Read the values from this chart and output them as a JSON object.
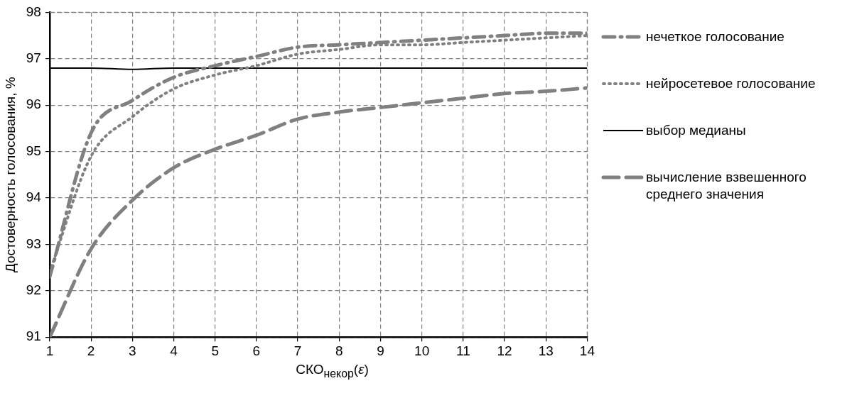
{
  "chart_data": {
    "type": "line",
    "xlabel": "СКО$_{некор}$(ε)",
    "ylabel": "Достоверность голосования, %",
    "x": [
      1,
      2,
      3,
      4,
      5,
      6,
      7,
      8,
      9,
      10,
      11,
      12,
      13,
      14
    ],
    "series": [
      {
        "name": "нечеткое голосование",
        "color": "#808080",
        "line_style": "dashdot",
        "values": [
          92.3,
          95.4,
          96.1,
          96.6,
          96.85,
          97.05,
          97.25,
          97.3,
          97.35,
          97.4,
          97.45,
          97.5,
          97.55,
          97.55
        ]
      },
      {
        "name": "нейросетевое голосование",
        "color": "#808080",
        "line_style": "dotted",
        "values": [
          92.4,
          94.9,
          95.75,
          96.35,
          96.65,
          96.85,
          97.1,
          97.2,
          97.3,
          97.3,
          97.35,
          97.4,
          97.45,
          97.5
        ]
      },
      {
        "name": "выбор медианы",
        "color": "#000000",
        "line_style": "solid",
        "values": [
          96.8,
          96.8,
          96.77,
          96.8,
          96.8,
          96.8,
          96.8,
          96.8,
          96.8,
          96.8,
          96.8,
          96.8,
          96.8,
          96.8
        ]
      },
      {
        "name": "вычисление взвешенного среднего значения",
        "color": "#808080",
        "line_style": "dashed",
        "values": [
          91.0,
          92.9,
          93.95,
          94.65,
          95.05,
          95.35,
          95.7,
          95.85,
          95.95,
          96.05,
          96.15,
          96.25,
          96.3,
          96.37
        ]
      }
    ],
    "xlim": [
      1,
      14
    ],
    "xticks": [
      1,
      2,
      3,
      4,
      5,
      6,
      7,
      8,
      9,
      10,
      11,
      12,
      13,
      14
    ],
    "ylim": [
      91,
      98
    ],
    "yticks": [
      91,
      92,
      93,
      94,
      95,
      96,
      97,
      98
    ],
    "grid": true,
    "legend": "right",
    "marker": "none"
  }
}
